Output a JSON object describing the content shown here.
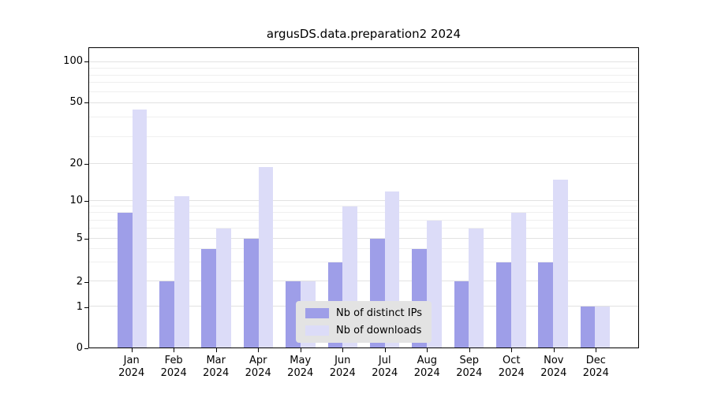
{
  "title": "argusDS.data.preparation2 2024",
  "chart_data": {
    "type": "bar",
    "title": "argusDS.data.preparation2 2024",
    "categories": [
      "Jan",
      "Feb",
      "Mar",
      "Apr",
      "May",
      "Jun",
      "Jul",
      "Aug",
      "Sep",
      "Oct",
      "Nov",
      "Dec"
    ],
    "year": "2024",
    "series": [
      {
        "name": "Nb of distinct IPs",
        "color": "#9e9ee8",
        "values": [
          8,
          2,
          4,
          5,
          2,
          3,
          5,
          4,
          2,
          3,
          3,
          1
        ]
      },
      {
        "name": "Nb of downloads",
        "color": "#dcdcf8",
        "values": [
          45,
          11,
          6,
          19,
          2,
          9,
          12,
          7,
          6,
          8,
          15,
          1
        ]
      }
    ],
    "y_ticks": [
      "0",
      "1",
      "2",
      "5",
      "10",
      "20",
      "50",
      "100"
    ],
    "y_scale": "symlog",
    "ylim": [
      0,
      130
    ],
    "grid": true,
    "legend_position": "lower center"
  },
  "colors": {
    "axis": "#000000",
    "grid_major": "#e2e2e2",
    "grid_minor": "#efefef",
    "legend_bg": "#e3e3e3"
  }
}
